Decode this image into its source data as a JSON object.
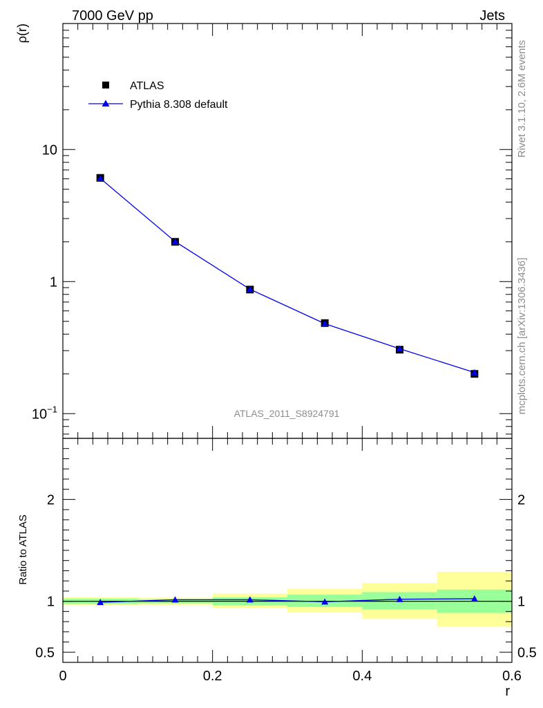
{
  "header": {
    "left": "7000 GeV pp",
    "right": "Jets"
  },
  "side_text": {
    "rivet": "Rivet 3.1.10,  2.6M events",
    "mcplots": "mcplots.cern.ch [arXiv:1306.3436]"
  },
  "analysis_label": "ATLAS_2011_S8924791",
  "legend": {
    "data_label": "ATLAS",
    "mc_label": "Pythia 8.308 default"
  },
  "colors": {
    "data": "#000000",
    "mc": "#0000ee",
    "band_inner": "#99ff99",
    "band_outer": "#ffff99"
  },
  "chart_data": [
    {
      "type": "scatter",
      "ylabel": "ρ(r)",
      "xlabel": "r",
      "yscale": "log",
      "xlim": [
        0,
        0.6
      ],
      "ylim": [
        0.065,
        90
      ],
      "yticks": [
        {
          "value": 10,
          "label": "10"
        },
        {
          "value": 1,
          "label": "1"
        },
        {
          "value": 0.1,
          "label": "10",
          "sup": "−1"
        }
      ],
      "series": [
        {
          "name": "ATLAS",
          "marker": "square",
          "x": [
            0.05,
            0.15,
            0.25,
            0.35,
            0.45,
            0.55
          ],
          "y": [
            6.1,
            2.0,
            0.87,
            0.485,
            0.305,
            0.2
          ]
        },
        {
          "name": "Pythia 8.308 default",
          "marker": "triangle",
          "x": [
            0.05,
            0.15,
            0.25,
            0.35,
            0.45,
            0.55
          ],
          "y": [
            6.05,
            2.01,
            0.875,
            0.48,
            0.31,
            0.205
          ]
        }
      ]
    },
    {
      "type": "line",
      "ylabel": "Ratio to ATLAS",
      "xlabel": "r",
      "xlim": [
        0,
        0.6
      ],
      "ylim": [
        0.4,
        2.6
      ],
      "xticks": [
        {
          "value": 0,
          "label": "0"
        },
        {
          "value": 0.2,
          "label": "0.2"
        },
        {
          "value": 0.4,
          "label": "0.4"
        },
        {
          "value": 0.6,
          "label": "0.6"
        }
      ],
      "yticks": [
        {
          "value": 2,
          "label": "2"
        },
        {
          "value": 1,
          "label": "1"
        },
        {
          "value": 0.5,
          "label": "0.5"
        }
      ],
      "bins": [
        {
          "lo": 0.0,
          "hi": 0.1,
          "inner": [
            0.975,
            1.025
          ],
          "outer": [
            0.96,
            1.04
          ]
        },
        {
          "lo": 0.1,
          "hi": 0.2,
          "inner": [
            0.98,
            1.02
          ],
          "outer": [
            0.965,
            1.035
          ]
        },
        {
          "lo": 0.2,
          "hi": 0.3,
          "inner": [
            0.96,
            1.04
          ],
          "outer": [
            0.935,
            1.075
          ]
        },
        {
          "lo": 0.3,
          "hi": 0.4,
          "inner": [
            0.945,
            1.065
          ],
          "outer": [
            0.89,
            1.12
          ]
        },
        {
          "lo": 0.4,
          "hi": 0.5,
          "inner": [
            0.92,
            1.09
          ],
          "outer": [
            0.83,
            1.18
          ]
        },
        {
          "lo": 0.5,
          "hi": 0.6,
          "inner": [
            0.885,
            1.115
          ],
          "outer": [
            0.75,
            1.29
          ]
        }
      ],
      "series": [
        {
          "name": "Pythia 8.308 default",
          "x": [
            0.05,
            0.15,
            0.25,
            0.35,
            0.45,
            0.55
          ],
          "y": [
            0.99,
            1.015,
            1.015,
            0.995,
            1.02,
            1.025
          ]
        }
      ]
    }
  ]
}
